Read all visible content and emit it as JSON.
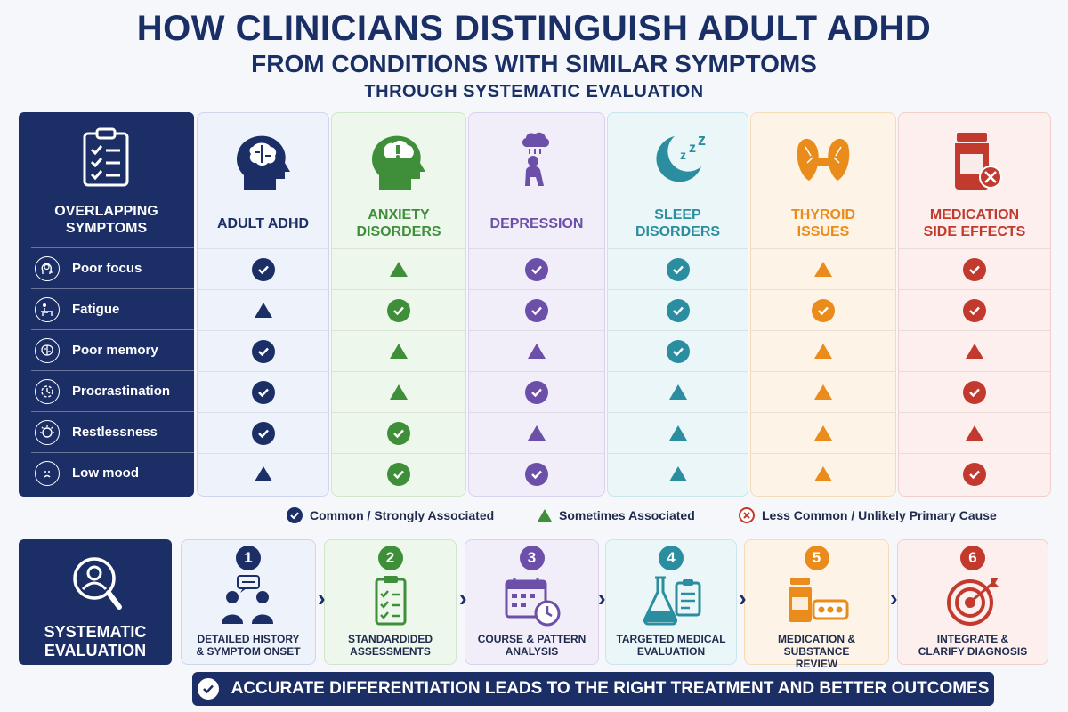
{
  "title": {
    "line1": "HOW CLINICIANS DISTINGUISH ADULT ADHD",
    "line2": "FROM CONDITIONS WITH SIMILAR SYMPTOMS",
    "line3": "THROUGH SYSTEMATIC EVALUATION"
  },
  "symptoms_panel": {
    "heading_line1": "OVERLAPPING",
    "heading_line2": "SYMPTOMS",
    "icon": "clipboard-checklist-icon",
    "items": [
      {
        "label": "Poor focus",
        "icon": "head-brain-icon"
      },
      {
        "label": "Fatigue",
        "icon": "person-at-desk-icon"
      },
      {
        "label": "Poor memory",
        "icon": "brain-icon"
      },
      {
        "label": "Procrastination",
        "icon": "clock-icon"
      },
      {
        "label": "Restlessness",
        "icon": "restless-head-icon"
      },
      {
        "label": "Low mood",
        "icon": "sad-face-icon"
      }
    ]
  },
  "conditions": [
    {
      "line1": "ADULT ADHD",
      "line2": "",
      "color": "#1b2e66",
      "bg": "#eef2fb",
      "border": "#cdd6ec",
      "icon": "brain-head-icon",
      "marks": [
        "check",
        "tri",
        "check",
        "check",
        "check",
        "tri"
      ]
    },
    {
      "line1": "ANXIETY",
      "line2": "DISORDERS",
      "color": "#3f8f3a",
      "bg": "#eef7ec",
      "border": "#cfe6cb",
      "icon": "anxious-head-icon",
      "marks": [
        "tri",
        "check",
        "tri",
        "tri",
        "check",
        "check"
      ]
    },
    {
      "line1": "DEPRESSION",
      "line2": "",
      "color": "#6b4fa8",
      "bg": "#f1eef9",
      "border": "#d9d1ee",
      "icon": "sad-person-cloud-icon",
      "marks": [
        "check",
        "check",
        "tri",
        "check",
        "tri",
        "check"
      ]
    },
    {
      "line1": "SLEEP",
      "line2": "DISORDERS",
      "color": "#2a8ea0",
      "bg": "#eaf6f8",
      "border": "#c8e6ec",
      "icon": "moon-zzz-icon",
      "marks": [
        "check",
        "check",
        "check",
        "tri",
        "tri",
        "tri"
      ]
    },
    {
      "line1": "THYROID",
      "line2": "ISSUES",
      "color": "#ea8c1c",
      "bg": "#fdf3e6",
      "border": "#f5dcb8",
      "icon": "thyroid-icon",
      "marks": [
        "tri",
        "check",
        "tri",
        "tri",
        "tri",
        "tri"
      ]
    },
    {
      "line1": "MEDICATION",
      "line2": "SIDE EFFECTS",
      "color": "#c23a2e",
      "bg": "#fcefed",
      "border": "#f2cfca",
      "icon": "pill-bottle-icon",
      "marks": [
        "check",
        "check",
        "tri",
        "check",
        "tri",
        "check"
      ]
    }
  ],
  "legend": {
    "common": "Common / Strongly Associated",
    "sometimes": "Sometimes Associated",
    "less": "Less Common / Unlikely Primary Cause"
  },
  "evaluation": {
    "line1": "SYSTEMATIC",
    "line2": "EVALUATION",
    "icon": "magnifier-person-icon",
    "steps": [
      {
        "num": "1",
        "line1": "DETAILED HISTORY",
        "line2": "& SYMPTOM ONSET",
        "color": "#1b2e66",
        "bg": "#eef2fb",
        "border": "#cdd6ec",
        "icon": "conversation-icon"
      },
      {
        "num": "2",
        "line1": "STANDARDIDED",
        "line2": "ASSESSMENTS",
        "color": "#3f8f3a",
        "bg": "#eef7ec",
        "border": "#cfe6cb",
        "icon": "clipboard-icon"
      },
      {
        "num": "3",
        "line1": "COURSE & PATTERN",
        "line2": "ANALYSIS",
        "color": "#6b4fa8",
        "bg": "#f1eef9",
        "border": "#d9d1ee",
        "icon": "calendar-clock-icon"
      },
      {
        "num": "4",
        "line1": "TARGETED MEDICAL",
        "line2": "EVALUATION",
        "color": "#2a8ea0",
        "bg": "#eaf6f8",
        "border": "#c8e6ec",
        "icon": "flask-clipboard-icon"
      },
      {
        "num": "5",
        "line1": "MEDICATION & SUBSTANCE",
        "line2": "REVIEW",
        "color": "#ea8c1c",
        "bg": "#fdf3e6",
        "border": "#f5dcb8",
        "icon": "pills-icon"
      },
      {
        "num": "6",
        "line1": "INTEGRATE &",
        "line2": "CLARIFY DIAGNOSIS",
        "color": "#c23a2e",
        "bg": "#fcefed",
        "border": "#f2cfca",
        "icon": "target-icon"
      }
    ]
  },
  "banner": "ACCURATE DIFFERENTIATION LEADS TO THE RIGHT TREATMENT AND BETTER OUTCOMES"
}
